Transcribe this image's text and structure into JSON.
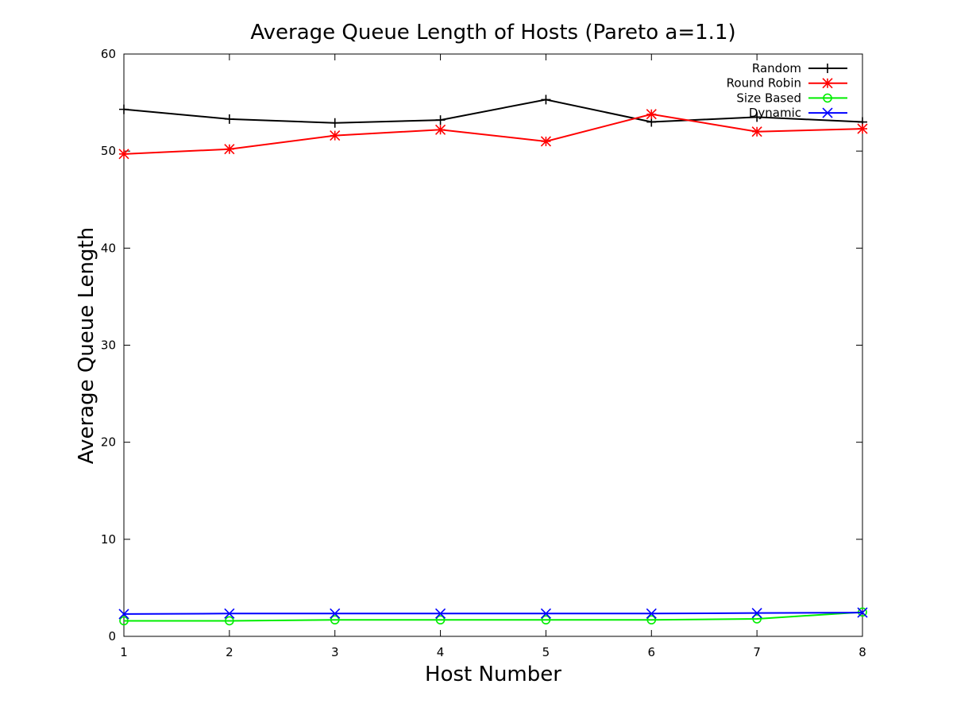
{
  "chart_data": {
    "type": "line",
    "title": "Average Queue Length of Hosts (Pareto a=1.1)",
    "xlabel": "Host Number",
    "ylabel": "Average Queue Length",
    "x": [
      1,
      2,
      3,
      4,
      5,
      6,
      7,
      8
    ],
    "xlim": [
      1,
      8
    ],
    "ylim": [
      0,
      60
    ],
    "xticks": [
      1,
      2,
      3,
      4,
      5,
      6,
      7,
      8
    ],
    "yticks": [
      0,
      10,
      20,
      30,
      40,
      50,
      60
    ],
    "grid": false,
    "legend_position": "top-right",
    "series": [
      {
        "name": "Random",
        "color": "#000000",
        "marker": "plus",
        "values": [
          54.3,
          53.3,
          52.9,
          53.2,
          55.3,
          53.0,
          53.5,
          53.0
        ]
      },
      {
        "name": "Round Robin",
        "color": "#ff0000",
        "marker": "star",
        "values": [
          49.7,
          50.2,
          51.6,
          52.2,
          51.0,
          53.8,
          52.0,
          52.3
        ]
      },
      {
        "name": "Size Based",
        "color": "#00ee00",
        "marker": "circle",
        "values": [
          1.6,
          1.6,
          1.7,
          1.7,
          1.7,
          1.7,
          1.8,
          2.5
        ]
      },
      {
        "name": "Dynamic",
        "color": "#0000ff",
        "marker": "x",
        "values": [
          2.3,
          2.35,
          2.35,
          2.35,
          2.35,
          2.35,
          2.4,
          2.45
        ]
      }
    ]
  }
}
